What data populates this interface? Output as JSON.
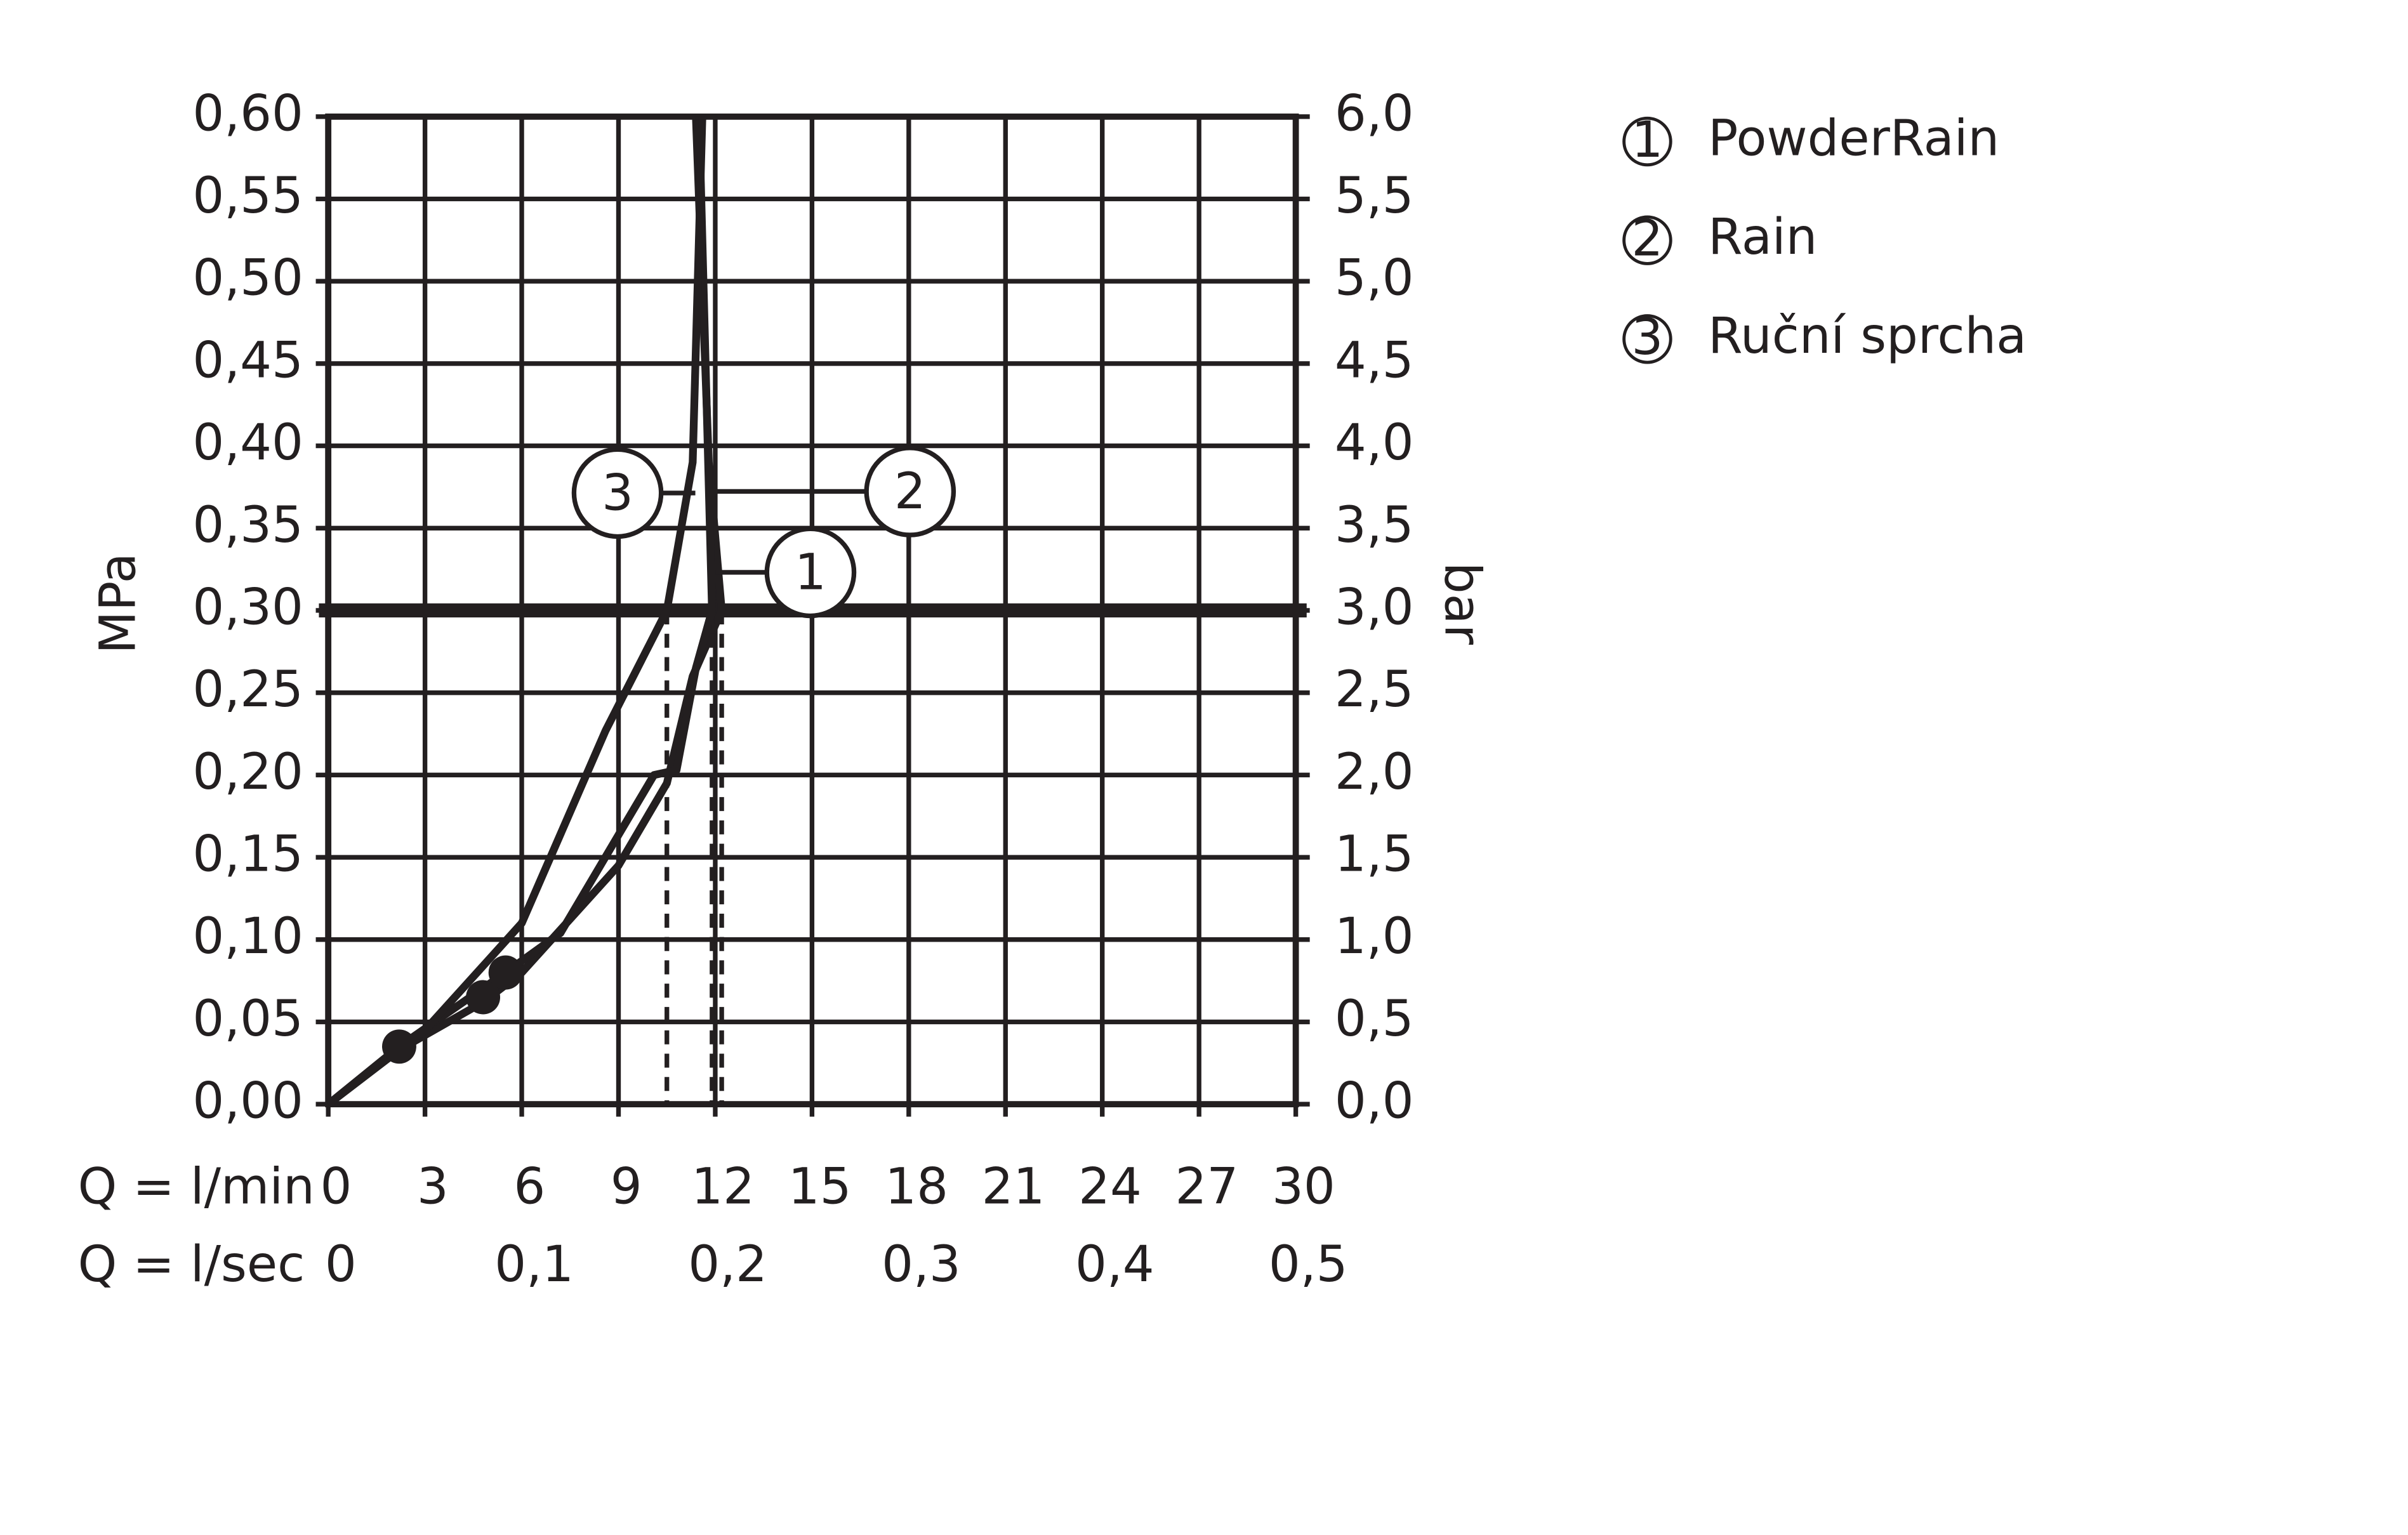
{
  "chart_data": {
    "type": "line",
    "x_label": "Q = l/min",
    "x2_label": "Q = l/sec",
    "y_label": "MPa",
    "y2_label": "bar",
    "xlim": [
      0,
      30
    ],
    "xticks": [
      0,
      3,
      6,
      9,
      12,
      15,
      18,
      21,
      24,
      27,
      30
    ],
    "x2lim": [
      0,
      0.5
    ],
    "x2ticks": [
      0,
      {
        "value": 0.1,
        "label": "0,1"
      },
      {
        "value": 0.2,
        "label": "0,2"
      },
      {
        "value": 0.3,
        "label": "0,3"
      },
      {
        "value": 0.4,
        "label": "0,4"
      },
      {
        "value": 0.5,
        "label": "0,5"
      }
    ],
    "ylim": [
      0,
      0.6
    ],
    "yticks": [
      {
        "value": 0,
        "label": "0,00"
      },
      {
        "value": 0.05,
        "label": "0,05"
      },
      {
        "value": 0.1,
        "label": "0,10"
      },
      {
        "value": 0.15,
        "label": "0,15"
      },
      {
        "value": 0.2,
        "label": "0,20"
      },
      {
        "value": 0.25,
        "label": "0,25"
      },
      {
        "value": 0.3,
        "label": "0,30"
      },
      {
        "value": 0.35,
        "label": "0,35"
      },
      {
        "value": 0.4,
        "label": "0,40"
      },
      {
        "value": 0.45,
        "label": "0,45"
      },
      {
        "value": 0.5,
        "label": "0,50"
      },
      {
        "value": 0.55,
        "label": "0,55"
      },
      {
        "value": 0.6,
        "label": "0,60"
      }
    ],
    "y2lim": [
      0,
      6
    ],
    "y2ticks": [
      {
        "value": 0,
        "label": "0,0"
      },
      {
        "value": 0.5,
        "label": "0,5"
      },
      {
        "value": 1,
        "label": "1,0"
      },
      {
        "value": 1.5,
        "label": "1,5"
      },
      {
        "value": 2,
        "label": "2,0"
      },
      {
        "value": 2.5,
        "label": "2,5"
      },
      {
        "value": 3,
        "label": "3,0"
      },
      {
        "value": 3.5,
        "label": "3,5"
      },
      {
        "value": 4,
        "label": "4,0"
      },
      {
        "value": 4.5,
        "label": "4,5"
      },
      {
        "value": 5,
        "label": "5,0"
      },
      {
        "value": 5.5,
        "label": "5,5"
      },
      {
        "value": 6,
        "label": "6,0"
      }
    ],
    "grid": true,
    "ref_y": 0.3,
    "series": [
      {
        "name": "PowderRain",
        "label": "1",
        "color": "#231f20",
        "ref_x": 12.2,
        "x": [
          0,
          2.2,
          4.8,
          6,
          9,
          10.5,
          11.3,
          12.2,
          11.8,
          11.4
        ],
        "values": [
          0,
          0.033,
          0.062,
          0.08,
          0.145,
          0.195,
          0.26,
          0.3,
          0.39,
          0.6
        ]
      },
      {
        "name": "Rain",
        "label": "2",
        "color": "#231f20",
        "ref_x": 11.9,
        "x": [
          0,
          2.2,
          5.5,
          7.2,
          10.1,
          10.8,
          11.4,
          11.9,
          11.5
        ],
        "values": [
          0,
          0.035,
          0.08,
          0.104,
          0.2,
          0.203,
          0.265,
          0.3,
          0.6
        ]
      },
      {
        "name": "Ruční sprcha",
        "label": "3",
        "color": "#231f20",
        "ref_x": 10.5,
        "x": [
          0,
          3,
          6,
          8.6,
          10.5,
          11.3,
          11.6
        ],
        "values": [
          0,
          0.045,
          0.11,
          0.227,
          0.3,
          0.39,
          0.6
        ]
      }
    ],
    "markers": [
      {
        "x": 2.2,
        "y": 0.035
      },
      {
        "x": 4.8,
        "y": 0.065
      },
      {
        "x": 5.5,
        "y": 0.08
      }
    ]
  }
}
